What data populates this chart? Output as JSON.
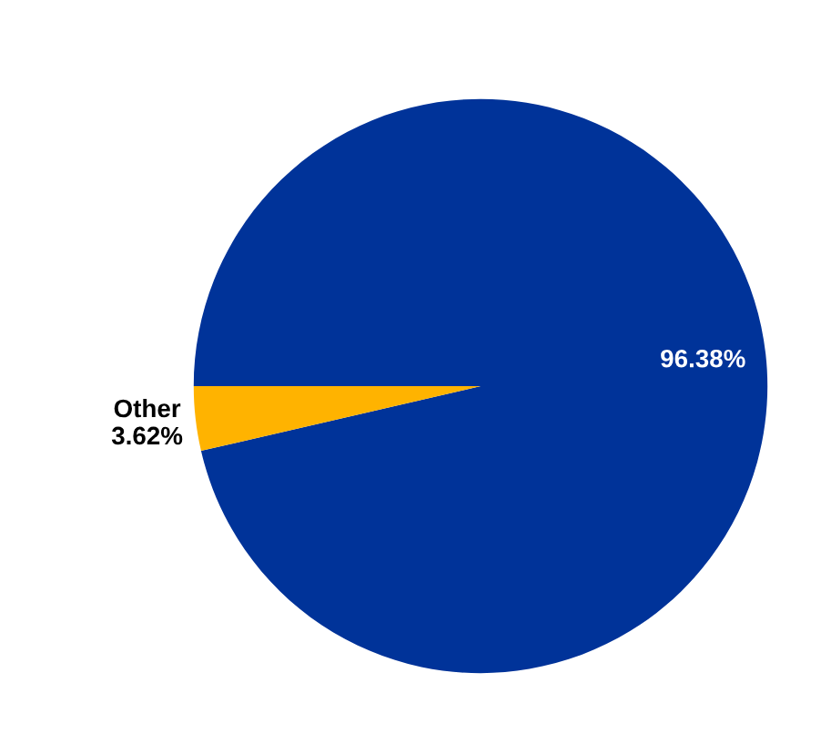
{
  "chart_data": {
    "type": "pie",
    "categories": [
      null,
      "Other"
    ],
    "values": [
      96.38,
      3.62
    ],
    "colors": [
      "#003399",
      "#ffb300"
    ],
    "value_labels": [
      "96.38%",
      "3.62%"
    ]
  }
}
